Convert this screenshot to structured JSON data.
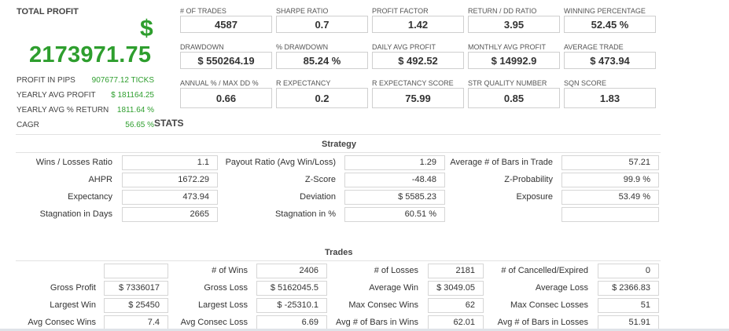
{
  "summary": {
    "total_profit_label": "TOTAL PROFIT",
    "currency_symbol": "$",
    "total_profit_value": "2173971.75",
    "rows": [
      {
        "label": "PROFIT IN PIPS",
        "value": "907677.12 TICKS"
      },
      {
        "label": "YEARLY AVG PROFIT",
        "value": "$ 181164.25"
      },
      {
        "label": "YEARLY AVG % RETURN",
        "value": "1811.64 %"
      },
      {
        "label": "CAGR",
        "value": "56.65 %"
      }
    ]
  },
  "stats_title": "STATS",
  "metrics": [
    {
      "label": "# OF TRADES",
      "value": "4587"
    },
    {
      "label": "SHARPE RATIO",
      "value": "0.7"
    },
    {
      "label": "PROFIT FACTOR",
      "value": "1.42"
    },
    {
      "label": "RETURN / DD RATIO",
      "value": "3.95"
    },
    {
      "label": "WINNING PERCENTAGE",
      "value": "52.45 %"
    },
    {
      "label": "DRAWDOWN",
      "value": "$ 550264.19"
    },
    {
      "label": "% DRAWDOWN",
      "value": "85.24 %"
    },
    {
      "label": "DAILY AVG PROFIT",
      "value": "$ 492.52"
    },
    {
      "label": "MONTHLY AVG PROFIT",
      "value": "$ 14992.9"
    },
    {
      "label": "AVERAGE TRADE",
      "value": "$ 473.94"
    },
    {
      "label": "ANNUAL % / MAX DD %",
      "value": "0.66"
    },
    {
      "label": "R EXPECTANCY",
      "value": "0.2"
    },
    {
      "label": "R EXPECTANCY SCORE",
      "value": "75.99"
    },
    {
      "label": "STR QUALITY NUMBER",
      "value": "0.85"
    },
    {
      "label": "SQN SCORE",
      "value": "1.83"
    }
  ],
  "strategy": {
    "title": "Strategy",
    "rows": [
      [
        {
          "label": "Wins / Losses Ratio",
          "value": "1.1"
        },
        {
          "label": "Payout Ratio (Avg Win/Loss)",
          "value": "1.29"
        },
        {
          "label": "Average # of Bars in Trade",
          "value": "57.21"
        }
      ],
      [
        {
          "label": "AHPR",
          "value": "1672.29"
        },
        {
          "label": "Z-Score",
          "value": "-48.48"
        },
        {
          "label": "Z-Probability",
          "value": "99.9 %"
        }
      ],
      [
        {
          "label": "Expectancy",
          "value": "473.94"
        },
        {
          "label": "Deviation",
          "value": "$ 5585.23"
        },
        {
          "label": "Exposure",
          "value": "53.49 %"
        }
      ],
      [
        {
          "label": "Stagnation in Days",
          "value": "2665"
        },
        {
          "label": "Stagnation in %",
          "value": "60.51 %"
        },
        {
          "label": "",
          "value": ""
        }
      ]
    ]
  },
  "trades": {
    "title": "Trades",
    "rows": [
      [
        {
          "label": "",
          "value": ""
        },
        {
          "label": "# of Wins",
          "value": "2406"
        },
        {
          "label": "# of Losses",
          "value": "2181"
        },
        {
          "label": "# of Cancelled/Expired",
          "value": "0"
        }
      ],
      [
        {
          "label": "Gross Profit",
          "value": "$ 7336017"
        },
        {
          "label": "Gross Loss",
          "value": "$ 5162045.5"
        },
        {
          "label": "Average Win",
          "value": "$ 3049.05"
        },
        {
          "label": "Average Loss",
          "value": "$ 2366.83"
        }
      ],
      [
        {
          "label": "Largest Win",
          "value": "$ 25450"
        },
        {
          "label": "Largest Loss",
          "value": "$ -25310.1"
        },
        {
          "label": "Max Consec Wins",
          "value": "62"
        },
        {
          "label": "Max Consec Losses",
          "value": "51"
        }
      ],
      [
        {
          "label": "Avg Consec Wins",
          "value": "7.4"
        },
        {
          "label": "Avg Consec Loss",
          "value": "6.69"
        },
        {
          "label": "Avg # of Bars in Wins",
          "value": "62.01"
        },
        {
          "label": "Avg # of Bars in Losses",
          "value": "51.91"
        }
      ]
    ]
  }
}
